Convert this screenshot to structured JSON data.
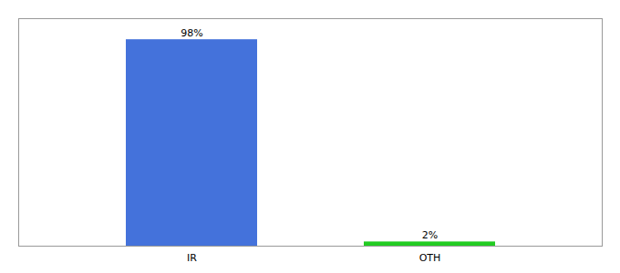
{
  "chart_data": {
    "type": "bar",
    "categories": [
      "IR",
      "OTH"
    ],
    "values": [
      98,
      2
    ],
    "value_labels": [
      "98%",
      "2%"
    ],
    "colors": [
      "#4472db",
      "#22cc22"
    ],
    "ylim": [
      0,
      108
    ],
    "data_labels": true,
    "tick_labels": "x",
    "grid": false
  }
}
